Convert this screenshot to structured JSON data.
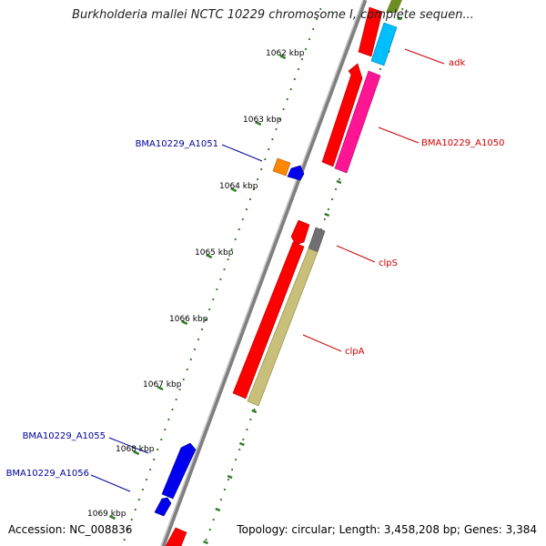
{
  "title": "Burkholderia mallei NCTC 10229 chromosome I, complete sequen...",
  "footer": {
    "accession": "Accession: NC_008836",
    "topology": "Topology: circular; Length: 3,458,208 bp; Genes: 3,384"
  },
  "kbp_labels": [
    "1062 kbp",
    "1063 kbp",
    "1064 kbp",
    "1065 kbp",
    "1066 kbp",
    "1067 kbp",
    "1068 kbp",
    "1069 kbp"
  ],
  "genes": [
    {
      "label": "adk",
      "label_color": "#cc0000"
    },
    {
      "label": "BMA10229_A1050",
      "label_color": "#cc0000"
    },
    {
      "label": "BMA10229_A1051",
      "label_color": "#000099"
    },
    {
      "label": "clpS",
      "label_color": "#cc0000"
    },
    {
      "label": "clpA",
      "label_color": "#cc0000"
    },
    {
      "label": "BMA10229_A1055",
      "label_color": "#000099"
    },
    {
      "label": "BMA10229_A1056",
      "label_color": "#000099"
    }
  ],
  "colors": {
    "backbone": "#7f7f7f",
    "tick": "#2e7d22",
    "cds_red": "#ff0000",
    "cyan": "#00bfff",
    "magenta": "#ff1493",
    "olive": "#c8c07a",
    "gray": "#707070",
    "orange": "#ff8800",
    "blue": "#0000ee",
    "green": "#6b8e23"
  }
}
